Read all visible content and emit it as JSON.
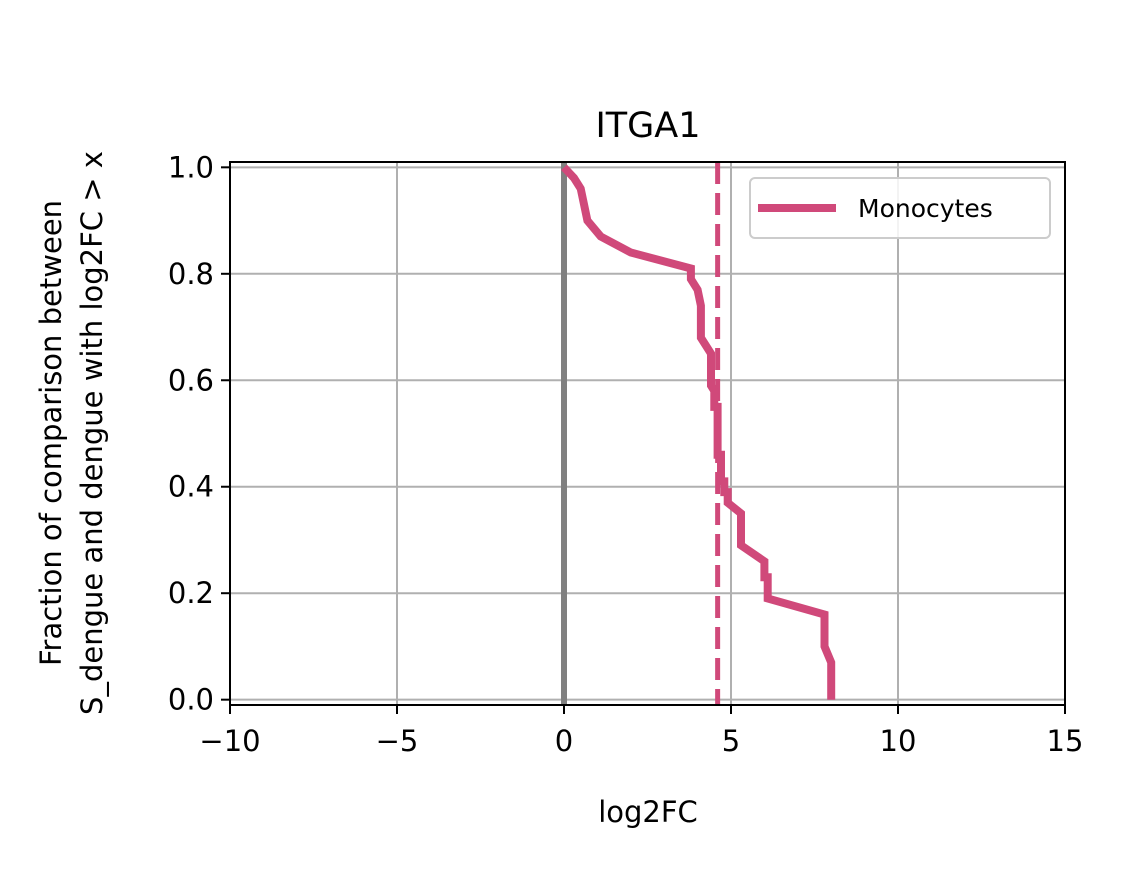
{
  "chart_data": {
    "type": "line",
    "title": "ITGA1",
    "xlabel": "log2FC",
    "ylabel_lines": [
      "Fraction of comparison between",
      "S_dengue and dengue with log2FC > x"
    ],
    "xlim": [
      -10,
      15
    ],
    "ylim": [
      -0.01,
      1.01
    ],
    "xticks": [
      -10,
      -5,
      0,
      5,
      10,
      15
    ],
    "xtick_labels": [
      "−10",
      "−5",
      "0",
      "5",
      "10",
      "15"
    ],
    "yticks": [
      0.0,
      0.2,
      0.4,
      0.6,
      0.8,
      1.0
    ],
    "ytick_labels": [
      "0.0",
      "0.2",
      "0.4",
      "0.6",
      "0.8",
      "1.0"
    ],
    "grid": true,
    "legend_position": "top-right",
    "reference_lines": [
      {
        "orientation": "vertical",
        "x": 0,
        "style": "solid",
        "color": "#808080"
      },
      {
        "orientation": "vertical",
        "x": 4.6,
        "style": "dashed",
        "color": "#d0497a"
      }
    ],
    "series": [
      {
        "name": "Monocytes",
        "color": "#d0497a",
        "x": [
          0.0,
          0.3,
          0.5,
          0.7,
          1.1,
          2.0,
          3.8,
          3.8,
          4.0,
          4.1,
          4.1,
          4.4,
          4.4,
          4.5,
          4.5,
          4.6,
          4.6,
          4.7,
          4.7,
          4.8,
          4.8,
          4.9,
          4.9,
          5.3,
          5.3,
          6.0,
          6.0,
          6.1,
          6.1,
          7.8,
          7.8,
          7.8,
          7.8,
          8.0,
          8.0
        ],
        "y": [
          1.0,
          0.98,
          0.96,
          0.9,
          0.87,
          0.84,
          0.81,
          0.79,
          0.77,
          0.74,
          0.68,
          0.65,
          0.59,
          0.58,
          0.55,
          0.55,
          0.46,
          0.46,
          0.41,
          0.41,
          0.39,
          0.39,
          0.37,
          0.35,
          0.29,
          0.26,
          0.23,
          0.23,
          0.19,
          0.16,
          0.13,
          0.11,
          0.1,
          0.07,
          0.0
        ]
      }
    ]
  }
}
